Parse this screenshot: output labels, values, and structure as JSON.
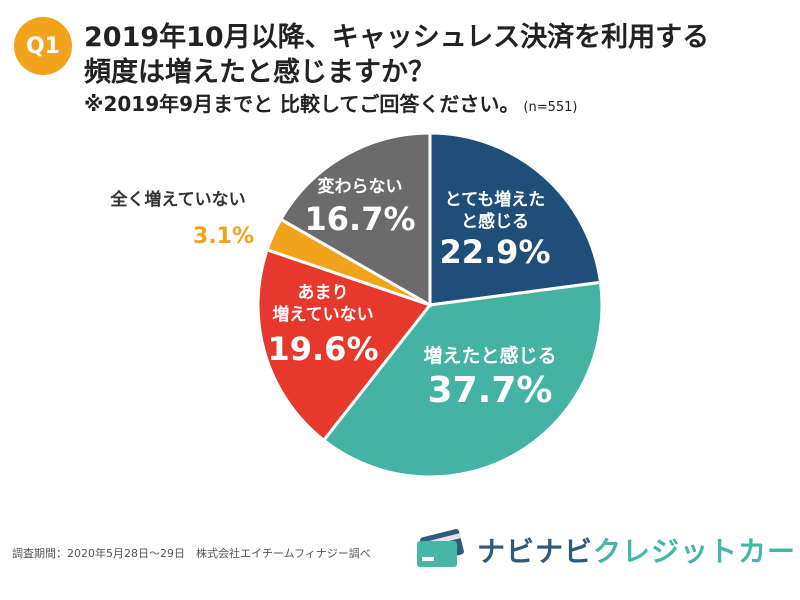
{
  "header": {
    "badge": "Q1",
    "title_line1": "2019年10月以降、キャッシュレス決済を利用する",
    "title_line2": "頻度は増えたと感じますか？",
    "note": "※2019年9月までと 比較してご回答ください。",
    "sample_size": "(n=551)"
  },
  "chart_data": {
    "type": "pie",
    "start": "12 o'clock",
    "direction": "clockwise",
    "slices": [
      {
        "label_lines": [
          "とても増えた",
          "と感じる"
        ],
        "value": 22.9,
        "value_text": "22.9%",
        "color": "#1f4e79",
        "text_color": "#ffffff",
        "label_outside": false
      },
      {
        "label_lines": [
          "増えたと感じる"
        ],
        "value": 37.7,
        "value_text": "37.7%",
        "color": "#45b3a4",
        "text_color": "#ffffff",
        "label_outside": false
      },
      {
        "label_lines": [
          "あまり",
          "増えていない"
        ],
        "value": 19.6,
        "value_text": "19.6%",
        "color": "#e6382d",
        "text_color": "#ffffff",
        "label_outside": false
      },
      {
        "label_lines": [
          "全く増えていない"
        ],
        "value": 3.1,
        "value_text": "3.1%",
        "color": "#f0a31b",
        "text_color": "#f0a31b",
        "label_outside": true
      },
      {
        "label_lines": [
          "変わらない"
        ],
        "value": 16.7,
        "value_text": "16.7%",
        "color": "#6b6b6b",
        "text_color": "#ffffff",
        "label_outside": false
      }
    ]
  },
  "footer": {
    "survey_note": "調査期間：2020年5月28日〜29日　株式会社エイチームフィナジー調べ",
    "brand_main": "ナビナビ",
    "brand_accent": "クレジットカード",
    "brand_icon": "credit-card-icon"
  }
}
